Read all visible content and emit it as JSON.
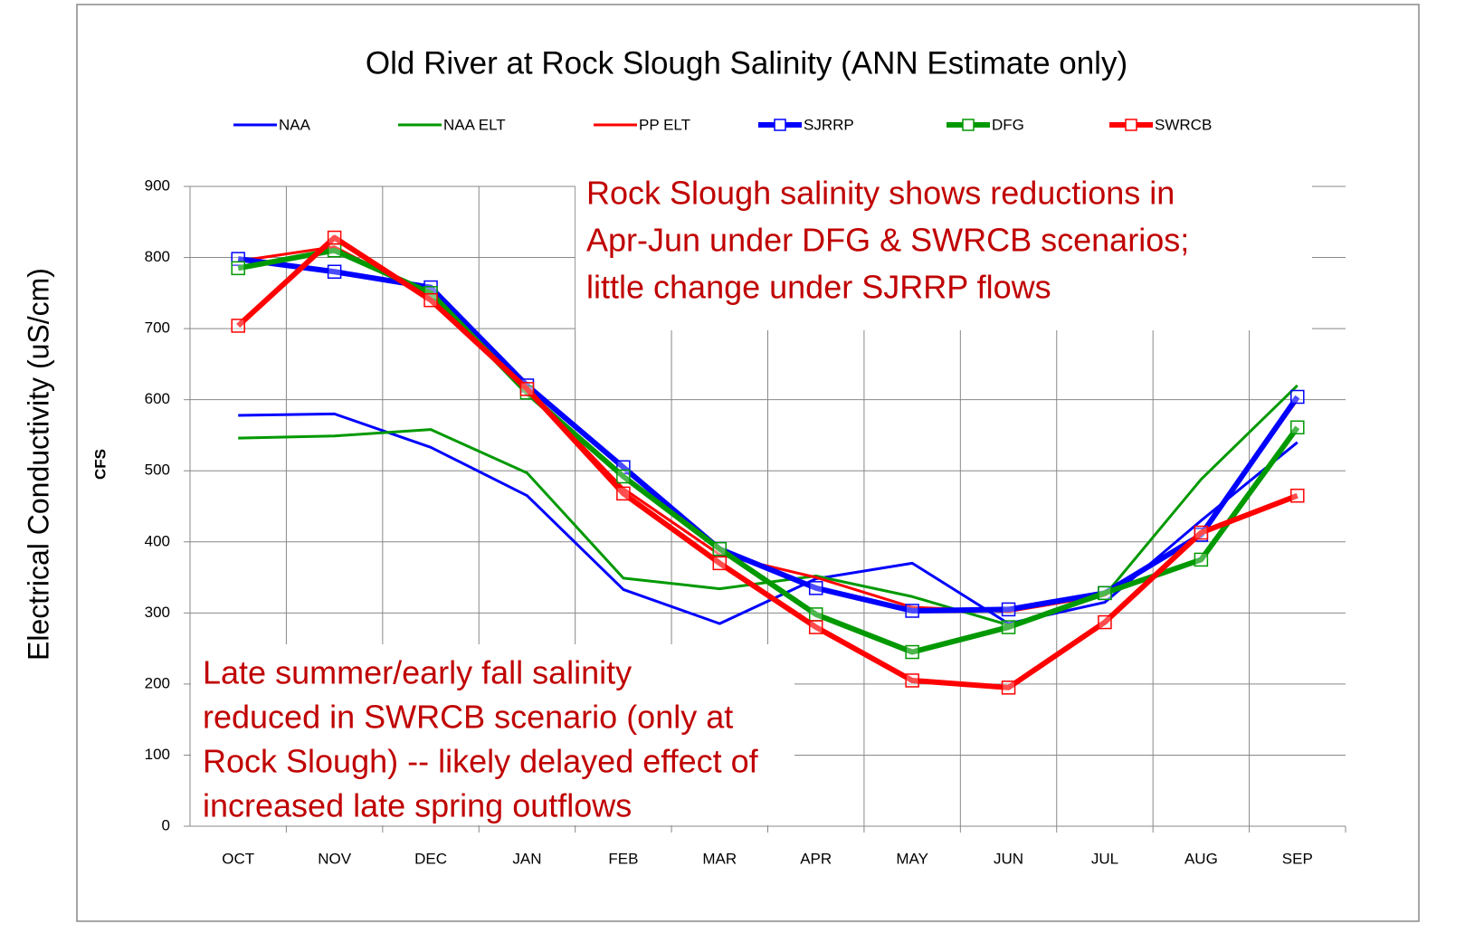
{
  "chart_data": {
    "type": "line",
    "title": "Old River at Rock Slough Salinity (ANN Estimate only)",
    "ylabel": "CFS",
    "outer_ylabel": "Electrical Conductivity (uS/cm)",
    "categories": [
      "OCT",
      "NOV",
      "DEC",
      "JAN",
      "FEB",
      "MAR",
      "APR",
      "MAY",
      "JUN",
      "JUL",
      "AUG",
      "SEP"
    ],
    "ylim": [
      0,
      900
    ],
    "yticks": [
      0,
      100,
      200,
      300,
      400,
      500,
      600,
      700,
      800,
      900
    ],
    "grid": true,
    "legend": "top",
    "series": [
      {
        "name": "NAA",
        "color": "#0000ff",
        "line_width": 3,
        "values": [
          578,
          580,
          533,
          465,
          333,
          285,
          348,
          370,
          285,
          315,
          430,
          540
        ]
      },
      {
        "name": "NAA ELT",
        "color": "#009900",
        "line_width": 3,
        "values": [
          546,
          549,
          558,
          497,
          349,
          334,
          352,
          323,
          283,
          325,
          488,
          620
        ]
      },
      {
        "name": "PP ELT",
        "color": "#ff0000",
        "line_width": 3,
        "values": [
          795,
          815,
          745,
          615,
          475,
          382,
          350,
          308,
          302,
          325,
          410,
          600
        ]
      },
      {
        "name": "SJRRP",
        "color": "#0000ff",
        "line_width": 6,
        "marker": "square",
        "values": [
          798,
          780,
          758,
          620,
          505,
          390,
          335,
          303,
          305,
          328,
          410,
          604
        ]
      },
      {
        "name": "DFG",
        "color": "#009900",
        "line_width": 6,
        "marker": "square",
        "values": [
          785,
          810,
          750,
          610,
          492,
          390,
          298,
          245,
          280,
          328,
          375,
          561
        ]
      },
      {
        "name": "SWRCB",
        "color": "#ff0000",
        "line_width": 6,
        "marker": "square",
        "values": [
          704,
          828,
          740,
          615,
          468,
          370,
          280,
          205,
          195,
          287,
          413,
          465
        ]
      }
    ],
    "annotations": [
      {
        "color": "#c00000",
        "lines": [
          "Rock Slough salinity shows reductions in",
          "Apr-Jun under DFG & SWRCB scenarios;",
          "little change under SJRRP flows"
        ]
      },
      {
        "color": "#c00000",
        "lines": [
          "Late summer/early fall salinity",
          "reduced in SWRCB scenario (only at",
          "Rock Slough) -- likely delayed effect of",
          "increased late spring outflows"
        ]
      }
    ]
  }
}
